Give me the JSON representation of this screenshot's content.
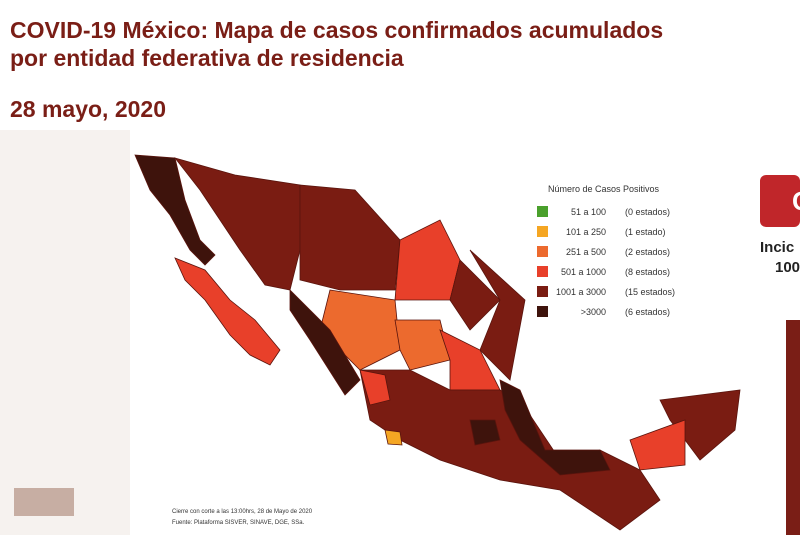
{
  "header": {
    "title_line1": "COVID-19 México: Mapa de casos confirmados acumulados",
    "title_line2": "por entidad federativa de residencia",
    "date": "28 mayo, 2020"
  },
  "legend": {
    "title": "Número de Casos Positivos",
    "items": [
      {
        "range": "51 a 100",
        "count": "(0 estados)",
        "color": "#4aa02c"
      },
      {
        "range": "101 a 250",
        "count": "(1 estado)",
        "color": "#f5a623"
      },
      {
        "range": "251 a 500",
        "count": "(2 estados)",
        "color": "#ec6a2e"
      },
      {
        "range": "501 a 1000",
        "count": "(8 estados)",
        "color": "#e8402a"
      },
      {
        "range": "1001 a 3000",
        "count": "(15 estados)",
        "color": "#7a1c12"
      },
      {
        "range": ">3000",
        "count": "(6 estados)",
        "color": "#3e130c"
      }
    ]
  },
  "notes": [
    "Cierre con corte a las 13:00hrs, 28 de Mayo de 2020",
    "Fuente: Plataforma SISVER, SINAVE, DGE, SSa."
  ],
  "side": {
    "badge": "C",
    "line1": "Incic",
    "line2": "100"
  }
}
